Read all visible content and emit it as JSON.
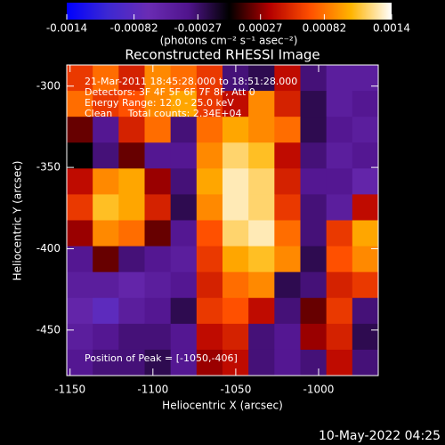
{
  "chart_data": {
    "type": "heatmap",
    "title": "Reconstructed RHESSI Image",
    "xlabel": "Heliocentric X (arcsec)",
    "ylabel": "Heliocentric Y (arcsec)",
    "colorbar_label": "(photons cm⁻² s⁻¹ asec⁻²)",
    "annotations": [
      "21-Mar-2011 18:45:28.000 to 18:51:28.000",
      "Detectors: 3F 4F 5F 6F 7F 8F, Att 0",
      "Energy Range: 12.0 - 25.0 keV",
      "Clean     Total counts: 2.34E+04"
    ],
    "peak_label": "Position of Peak = [-1050,-406]",
    "footer": "10-May-2022 04:25",
    "xlim": [
      -1152,
      -964
    ],
    "ylim": [
      -478,
      -287
    ],
    "xticks": [
      -1150,
      -1100,
      -1050,
      -1000
    ],
    "yticks": [
      -300,
      -350,
      -400,
      -450
    ],
    "zlim": [
      -0.0014,
      0.0014
    ],
    "zticks": [
      -0.0014,
      -0.00082,
      -0.00027,
      0.00027,
      0.00082,
      0.0014
    ],
    "colorscale": [
      "#0000ff",
      "#3c28d2",
      "#6a2cb4",
      "#50148c",
      "#000000",
      "#b40000",
      "#ff5000",
      "#ffb400",
      "#ffffff"
    ],
    "z": [
      [
        0.0006,
        0.0008,
        0.0005,
        0.0009,
        0.0008,
        0.0006,
        -0.0003,
        -0.0002,
        0.0004,
        -0.0003,
        -0.0005,
        -0.0005
      ],
      [
        0.0008,
        0.0006,
        0.0007,
        0.0009,
        0.001,
        0.0006,
        0.0004,
        0.0009,
        0.0005,
        -0.0002,
        -0.0005,
        -0.0004
      ],
      [
        0.0002,
        -0.0004,
        0.0005,
        0.0008,
        -0.0003,
        0.0008,
        0.001,
        0.0009,
        0.0008,
        -0.0002,
        -0.0004,
        -0.0005
      ],
      [
        0,
        -0.0003,
        0.0002,
        -0.0004,
        -0.0004,
        0.0009,
        0.0012,
        0.0011,
        0.0004,
        -0.0003,
        -0.0005,
        -0.0004
      ],
      [
        0.0004,
        0.0009,
        0.001,
        0.0003,
        -0.0003,
        0.001,
        0.0013,
        0.0012,
        0.0005,
        -0.0004,
        -0.0004,
        -0.0006
      ],
      [
        0.0006,
        0.0011,
        0.001,
        0.0005,
        -0.0002,
        0.0009,
        0.0013,
        0.0012,
        0.0006,
        -0.0003,
        -0.0005,
        0.0004
      ],
      [
        0.0003,
        0.0009,
        0.0008,
        0.0002,
        -0.0004,
        0.0007,
        0.0012,
        0.0013,
        0.0008,
        -0.0003,
        0.0006,
        0.001
      ],
      [
        -0.0004,
        0.0002,
        -0.0003,
        -0.0004,
        -0.0005,
        0.0006,
        0.001,
        0.0011,
        0.0009,
        -0.0002,
        0.0007,
        0.0009
      ],
      [
        -0.0005,
        -0.0005,
        -0.0006,
        -0.0005,
        -0.0004,
        0.0005,
        0.0008,
        0.0009,
        -0.0002,
        -0.0003,
        0.0005,
        0.0006
      ],
      [
        -0.0006,
        -0.0008,
        -0.0005,
        -0.0004,
        -0.0002,
        0.0006,
        0.0007,
        0.0004,
        -0.0003,
        0.0002,
        0.0006,
        -0.0003
      ],
      [
        -0.0005,
        -0.0004,
        -0.0003,
        -0.0003,
        -0.0004,
        0.0004,
        0.0005,
        -0.0003,
        -0.0004,
        0.0003,
        0.0005,
        -0.0002
      ],
      [
        -0.0004,
        -0.0003,
        -0.0003,
        -0.0002,
        -0.0004,
        0.0003,
        0.0004,
        -0.0003,
        -0.0004,
        -0.0003,
        0.0004,
        -0.0003
      ]
    ]
  }
}
